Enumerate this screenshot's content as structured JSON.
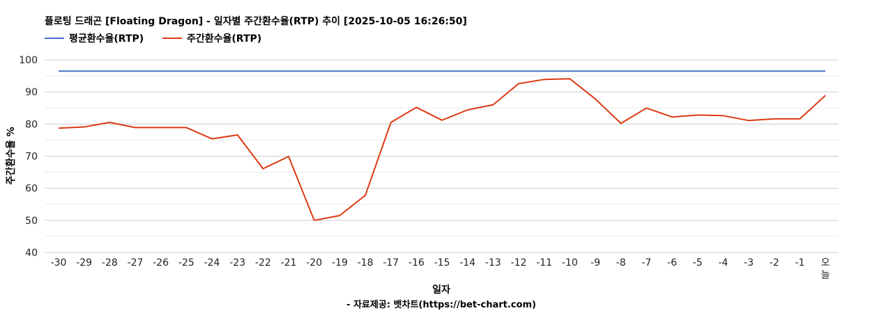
{
  "chart_data": {
    "type": "line",
    "title": "플로팅 드래곤 [Floating Dragon] - 일자별 주간환수율(RTP) 추이 [2025-10-05 16:26:50]",
    "xlabel": "일자",
    "ylabel": "주간환수율 %",
    "source": "- 자료제공: 벳차트(https://bet-chart.com)",
    "ylim": [
      40,
      100
    ],
    "yticks": [
      40,
      50,
      60,
      70,
      80,
      90,
      100
    ],
    "grid": true,
    "legend_position": "top-left",
    "categories": [
      "-30",
      "-29",
      "-28",
      "-27",
      "-26",
      "-25",
      "-24",
      "-23",
      "-22",
      "-21",
      "-20",
      "-19",
      "-18",
      "-17",
      "-16",
      "-15",
      "-14",
      "-13",
      "-12",
      "-11",
      "-10",
      "-9",
      "-8",
      "-7",
      "-6",
      "-5",
      "-4",
      "-3",
      "-2",
      "-1",
      "오늘"
    ],
    "series": [
      {
        "name": "평균환수율(RTP)",
        "color": "#4472c4",
        "values": [
          96.5,
          96.5,
          96.5,
          96.5,
          96.5,
          96.5,
          96.5,
          96.5,
          96.5,
          96.5,
          96.5,
          96.5,
          96.5,
          96.5,
          96.5,
          96.5,
          96.5,
          96.5,
          96.5,
          96.5,
          96.5,
          96.5,
          96.5,
          96.5,
          96.5,
          96.5,
          96.5,
          96.5,
          96.5,
          96.5,
          96.5
        ]
      },
      {
        "name": "주간환수율(RTP)",
        "color": "#dc3912",
        "values": [
          78.7,
          79.1,
          80.5,
          78.9,
          78.9,
          78.9,
          75.4,
          76.6,
          66.1,
          69.9,
          50.0,
          51.5,
          57.8,
          80.5,
          85.2,
          81.2,
          84.4,
          86.0,
          92.6,
          93.9,
          94.1,
          87.8,
          80.2,
          85.0,
          82.2,
          82.8,
          82.6,
          81.1,
          81.6,
          81.6,
          88.9
        ]
      }
    ]
  }
}
